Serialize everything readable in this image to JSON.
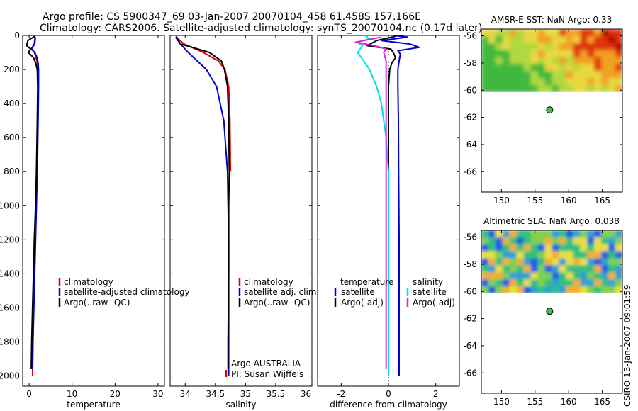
{
  "title_line1": "Argo profile: CS 5900347_69 03-Jan-2007 20070104_458 61.458S 157.166E",
  "title_line2": "Climatology: CARS2006. Satellite-adjusted climatology: synTS_20070104.nc (0.17d later)",
  "stamp": "CSIRO 13-Jan-2007 09:01:59",
  "colors": {
    "climatology": "#e00000",
    "satellite": "#0000d0",
    "argo": "#000000",
    "sal_satellite": "#00e0e0",
    "sal_argo": "#e020e0"
  },
  "chart_data": [
    {
      "type": "line",
      "xlabel": "temperature",
      "xlim": [
        -1.5,
        31.5
      ],
      "xticks": [
        "0",
        "10",
        "20",
        "30"
      ],
      "ylim": [
        0,
        2060
      ],
      "yticks": [
        "0",
        "200",
        "400",
        "600",
        "800",
        "1000",
        "1200",
        "1400",
        "1600",
        "1800",
        "2000"
      ],
      "series": [
        {
          "name": "climatology",
          "color": "#e00000",
          "depth": [
            10,
            50,
            80,
            100,
            120,
            160,
            200,
            300,
            500,
            800,
            1000,
            1200,
            1400,
            1600,
            1800,
            2000
          ],
          "values": [
            1.5,
            1.3,
            0.6,
            1.2,
            1.5,
            1.9,
            2.0,
            2.1,
            2.0,
            1.8,
            1.6,
            1.4,
            1.2,
            1.0,
            0.9,
            0.8
          ]
        },
        {
          "name": "satellite-adjusted climatology",
          "color": "#0000d0",
          "depth": [
            10,
            50,
            80,
            100,
            120,
            160,
            200,
            300,
            500,
            800,
            1000,
            1200,
            1400,
            1600,
            1800,
            1960
          ],
          "values": [
            1.4,
            1.2,
            0.5,
            1.3,
            1.7,
            2.1,
            2.2,
            2.2,
            2.1,
            1.9,
            1.7,
            1.5,
            1.3,
            1.1,
            0.9,
            0.8
          ]
        },
        {
          "name": "Argo(..raw -QC)",
          "color": "#000000",
          "depth": [
            5,
            30,
            60,
            80,
            100,
            130,
            160,
            200,
            300,
            500,
            800,
            1000,
            1200,
            1400,
            1600,
            1800,
            1960
          ],
          "values": [
            1.3,
            -0.3,
            -0.6,
            0.4,
            -0.2,
            1.0,
            1.5,
            1.9,
            2.0,
            1.9,
            1.7,
            1.5,
            1.2,
            1.0,
            0.8,
            0.6,
            0.5
          ]
        }
      ]
    },
    {
      "type": "line",
      "xlabel": "salinity",
      "xlim": [
        33.75,
        36.1
      ],
      "xticks": [
        "34",
        "34.5",
        "35",
        "35.5",
        "36"
      ],
      "ylim": [
        0,
        2060
      ],
      "series": [
        {
          "name": "climatology",
          "color": "#e00000",
          "depth": [
            10,
            50,
            100,
            150,
            200,
            300,
            500,
            800
          ],
          "values": [
            33.85,
            33.98,
            34.3,
            34.55,
            34.66,
            34.72,
            34.74,
            34.75
          ]
        },
        {
          "name": "satellite adj. clim.",
          "color": "#0000d0",
          "depth": [
            10,
            50,
            100,
            150,
            200,
            300,
            500,
            800,
            1200,
            1600,
            2000
          ],
          "values": [
            33.84,
            33.92,
            34.05,
            34.2,
            34.35,
            34.52,
            34.64,
            34.7,
            34.72,
            34.72,
            34.72
          ]
        },
        {
          "name": "Argo(..raw -QC)",
          "color": "#000000",
          "depth": [
            5,
            50,
            100,
            150,
            200,
            300,
            500,
            800,
            1000,
            1400,
            1800,
            1960
          ],
          "values": [
            33.85,
            33.92,
            34.4,
            34.6,
            34.65,
            34.7,
            34.72,
            34.73,
            34.72,
            34.72,
            34.71,
            34.71
          ]
        }
      ]
    },
    {
      "type": "line",
      "xlabel": "difference from climatology",
      "xlim": [
        -3.0,
        3.0
      ],
      "xticks": [
        "-2",
        "0",
        "2"
      ],
      "ylim": [
        0,
        2060
      ],
      "series": [
        {
          "name": "temperature satellite",
          "color": "#0000d0",
          "depth": [
            0,
            10,
            30,
            50,
            70,
            90,
            110,
            150,
            200,
            300,
            500,
            800,
            1200,
            1600,
            2000
          ],
          "values": [
            0.2,
            0.8,
            -0.3,
            0.9,
            1.3,
            0.4,
            0.5,
            0.45,
            0.4,
            0.4,
            0.42,
            0.43,
            0.45,
            0.45,
            0.45
          ]
        },
        {
          "name": "temperature Argo(-adj)",
          "color": "#000000",
          "depth": [
            5,
            30,
            60,
            80,
            100,
            130,
            160,
            200,
            300,
            500,
            800,
            1000,
            1200,
            1600,
            1960
          ],
          "values": [
            0.3,
            -0.5,
            -0.9,
            0.1,
            0.2,
            0.3,
            0.15,
            0.05,
            0.0,
            0.0,
            0.0,
            0.0,
            0.0,
            0.0,
            0.0
          ]
        },
        {
          "name": "salinity satellite",
          "color": "#00e0e0",
          "depth": [
            0,
            20,
            40,
            60,
            100,
            160,
            200,
            300,
            400,
            500,
            600,
            700,
            800,
            1000,
            1500,
            2000
          ],
          "values": [
            -1.0,
            -0.8,
            -1.3,
            -1.1,
            -1.3,
            -1.0,
            -0.8,
            -0.5,
            -0.3,
            -0.2,
            -0.1,
            -0.05,
            0.0,
            0.0,
            0.0,
            0.0
          ]
        },
        {
          "name": "salinity Argo(-adj)",
          "color": "#e020e0",
          "depth": [
            10,
            40,
            60,
            80,
            100,
            150,
            200,
            300,
            500,
            1000,
            1500,
            1960
          ],
          "values": [
            -0.3,
            -1.4,
            -0.6,
            -0.1,
            -0.2,
            -0.1,
            -0.1,
            -0.1,
            -0.1,
            -0.1,
            -0.1,
            -0.1
          ]
        }
      ]
    },
    {
      "type": "heatmap",
      "title": "AMSR-E SST: NaN Argo: 0.33",
      "xlim": [
        147,
        168
      ],
      "xticks": [
        "150",
        "155",
        "160",
        "165"
      ],
      "ylim": [
        -67.5,
        -55.5
      ],
      "yticks": [
        "-56",
        "-58",
        "-60",
        "-62",
        "-64",
        "-66"
      ],
      "data_extent_lat": [
        -60.1,
        -55.5
      ],
      "marker": {
        "lon": 157.166,
        "lat": -61.458
      }
    },
    {
      "type": "heatmap",
      "title": "Altimetric SLA: NaN Argo: 0.038",
      "xlim": [
        147,
        168
      ],
      "xticks": [
        "150",
        "155",
        "160",
        "165"
      ],
      "ylim": [
        -67.5,
        -55.5
      ],
      "yticks": [
        "-56",
        "-58",
        "-60",
        "-62",
        "-64",
        "-66"
      ],
      "data_extent_lat": [
        -60.1,
        -55.5
      ],
      "marker": {
        "lon": 157.166,
        "lat": -61.458
      }
    }
  ],
  "legend_temp": [
    "climatology",
    "satellite-adjusted climatology",
    "Argo(..raw -QC)"
  ],
  "legend_sal": [
    "climatology",
    "satellite adj. clim.",
    "Argo(..raw -QC)"
  ],
  "legend_diff": {
    "temp_header": "temperature",
    "sal_header": "salinity",
    "temp_items": [
      "satellite",
      "Argo(-adj)"
    ],
    "sal_items": [
      "satellite",
      "Argo(-adj)"
    ]
  },
  "sal_note": [
    "Argo AUSTRALIA",
    "PI: Susan Wijffels"
  ]
}
